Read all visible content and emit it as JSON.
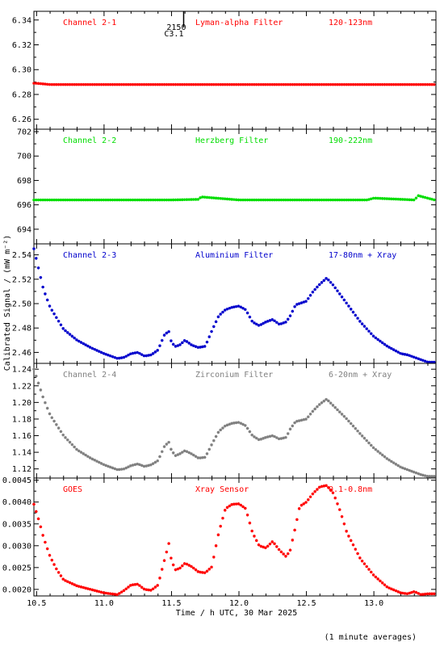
{
  "figure": {
    "xlabel": "Time / h UTC, 30 Mar 2025",
    "ylabel": "Calibrated Signal / (mW m⁻²)",
    "footnote": "(1 minute averages)",
    "marker_label": "2150",
    "marker_sublabel": "C3.1",
    "marker_x": 11.59,
    "xlim": [
      10.48,
      13.46
    ],
    "xticks": [
      10.5,
      11.0,
      11.5,
      12.0,
      12.5,
      13.0
    ],
    "xtick_labels": [
      "10.5",
      "11.0",
      "11.5",
      "12.0",
      "12.5",
      "13.0"
    ]
  },
  "chart_data": [
    {
      "type": "scatter",
      "channel": "Channel 2-1",
      "filter": "Lyman-alpha Filter",
      "band": "120-123nm",
      "color": "#ff0000",
      "ylim": [
        6.252,
        6.347
      ],
      "yticks": [
        6.26,
        6.28,
        6.3,
        6.32,
        6.34
      ],
      "ytick_labels": [
        "6.26",
        "6.28",
        "6.30",
        "6.32",
        "6.34"
      ],
      "x": [
        10.5,
        10.6,
        10.7,
        11.0,
        11.5,
        12.0,
        12.5,
        13.0,
        13.45
      ],
      "y": [
        6.289,
        6.288,
        6.288,
        6.288,
        6.288,
        6.288,
        6.288,
        6.288,
        6.288
      ]
    },
    {
      "type": "scatter",
      "channel": "Channel 2-2",
      "filter": "Herzberg Filter",
      "band": "190-222nm",
      "color": "#00dd00",
      "ylim": [
        692.8,
        702.2
      ],
      "yticks": [
        694,
        696,
        698,
        700,
        702
      ],
      "ytick_labels": [
        "694",
        "696",
        "698",
        "700",
        "702"
      ],
      "x": [
        10.5,
        11.0,
        11.5,
        11.7,
        11.72,
        12.0,
        12.5,
        12.95,
        13.0,
        13.3,
        13.33,
        13.45
      ],
      "y": [
        696.4,
        696.4,
        696.4,
        696.45,
        696.65,
        696.4,
        696.4,
        696.4,
        696.55,
        696.4,
        696.75,
        696.4
      ]
    },
    {
      "type": "scatter",
      "channel": "Channel 2-3",
      "filter": "Aluminium Filter",
      "band": "17-80nm + Xray",
      "color": "#0000cc",
      "ylim": [
        2.451,
        2.549
      ],
      "yticks": [
        2.46,
        2.48,
        2.5,
        2.52,
        2.54
      ],
      "ytick_labels": [
        "2.46",
        "2.48",
        "2.50",
        "2.52",
        "2.54"
      ],
      "x": [
        10.48,
        10.55,
        10.6,
        10.7,
        10.8,
        10.9,
        11.0,
        11.1,
        11.15,
        11.2,
        11.25,
        11.3,
        11.35,
        11.4,
        11.45,
        11.48,
        11.5,
        11.53,
        11.56,
        11.6,
        11.65,
        11.7,
        11.75,
        11.8,
        11.85,
        11.9,
        11.95,
        12.0,
        12.05,
        12.1,
        12.15,
        12.2,
        12.25,
        12.3,
        12.35,
        12.38,
        12.42,
        12.5,
        12.55,
        12.6,
        12.65,
        12.7,
        12.8,
        12.9,
        13.0,
        13.1,
        13.2,
        13.25,
        13.3,
        13.35,
        13.4,
        13.46
      ],
      "y": [
        2.545,
        2.512,
        2.497,
        2.479,
        2.47,
        2.464,
        2.459,
        2.455,
        2.456,
        2.459,
        2.46,
        2.457,
        2.458,
        2.462,
        2.475,
        2.477,
        2.468,
        2.465,
        2.466,
        2.47,
        2.466,
        2.464,
        2.465,
        2.478,
        2.49,
        2.495,
        2.497,
        2.498,
        2.495,
        2.485,
        2.482,
        2.485,
        2.487,
        2.483,
        2.485,
        2.49,
        2.499,
        2.502,
        2.51,
        2.516,
        2.521,
        2.515,
        2.5,
        2.485,
        2.473,
        2.465,
        2.459,
        2.458,
        2.456,
        2.454,
        2.452,
        2.452
      ]
    },
    {
      "type": "scatter",
      "channel": "Channel 2-4",
      "filter": "Zirconium Filter",
      "band": "6-20nm + Xray",
      "color": "#808080",
      "ylim": [
        1.109,
        1.247
      ],
      "yticks": [
        1.12,
        1.14,
        1.16,
        1.18,
        1.2,
        1.22,
        1.24
      ],
      "ytick_labels": [
        "1.12",
        "1.14",
        "1.16",
        "1.18",
        "1.20",
        "1.22",
        "1.24"
      ],
      "x": [
        10.48,
        10.55,
        10.6,
        10.7,
        10.8,
        10.9,
        11.0,
        11.1,
        11.15,
        11.2,
        11.25,
        11.3,
        11.35,
        11.4,
        11.45,
        11.48,
        11.5,
        11.53,
        11.56,
        11.6,
        11.65,
        11.7,
        11.75,
        11.8,
        11.85,
        11.9,
        11.95,
        12.0,
        12.05,
        12.1,
        12.15,
        12.2,
        12.25,
        12.3,
        12.35,
        12.38,
        12.42,
        12.5,
        12.55,
        12.6,
        12.65,
        12.7,
        12.8,
        12.9,
        13.0,
        13.1,
        13.2,
        13.25,
        13.3,
        13.35,
        13.4,
        13.46
      ],
      "y": [
        1.24,
        1.205,
        1.185,
        1.16,
        1.143,
        1.133,
        1.125,
        1.119,
        1.12,
        1.124,
        1.126,
        1.123,
        1.125,
        1.13,
        1.148,
        1.152,
        1.142,
        1.136,
        1.138,
        1.142,
        1.138,
        1.133,
        1.134,
        1.15,
        1.165,
        1.172,
        1.175,
        1.176,
        1.172,
        1.16,
        1.155,
        1.158,
        1.16,
        1.156,
        1.158,
        1.168,
        1.177,
        1.18,
        1.19,
        1.198,
        1.204,
        1.196,
        1.18,
        1.162,
        1.145,
        1.132,
        1.122,
        1.119,
        1.116,
        1.113,
        1.111,
        1.111
      ]
    },
    {
      "type": "scatter",
      "channel": "GOES",
      "filter": "Xray Sensor",
      "band": "0.1-0.8nm",
      "color": "#ff0000",
      "ylim": [
        0.00185,
        0.00455
      ],
      "yticks": [
        0.002,
        0.0025,
        0.003,
        0.0035,
        0.004,
        0.0045
      ],
      "ytick_labels": [
        "0.0020",
        "0.0025",
        "0.0030",
        "0.0035",
        "0.0040",
        "0.0045"
      ],
      "x": [
        10.48,
        10.52,
        10.55,
        10.6,
        10.65,
        10.7,
        10.8,
        10.9,
        11.0,
        11.1,
        11.15,
        11.2,
        11.25,
        11.3,
        11.35,
        11.4,
        11.45,
        11.48,
        11.5,
        11.53,
        11.56,
        11.6,
        11.65,
        11.7,
        11.75,
        11.8,
        11.82,
        11.85,
        11.9,
        11.95,
        12.0,
        12.05,
        12.1,
        12.15,
        12.2,
        12.25,
        12.3,
        12.35,
        12.38,
        12.42,
        12.45,
        12.5,
        12.55,
        12.6,
        12.65,
        12.7,
        12.75,
        12.8,
        12.9,
        13.0,
        13.1,
        13.2,
        13.25,
        13.3,
        13.35,
        13.4,
        13.46
      ],
      "y": [
        0.00395,
        0.00355,
        0.0032,
        0.00275,
        0.00245,
        0.00222,
        0.00208,
        0.002,
        0.00192,
        0.00188,
        0.00198,
        0.0021,
        0.00212,
        0.002,
        0.00198,
        0.0021,
        0.0027,
        0.00305,
        0.00265,
        0.00245,
        0.00248,
        0.0026,
        0.00252,
        0.0024,
        0.00238,
        0.00252,
        0.00285,
        0.0033,
        0.00385,
        0.00395,
        0.00396,
        0.00385,
        0.0033,
        0.003,
        0.00295,
        0.0031,
        0.0029,
        0.00275,
        0.0029,
        0.00345,
        0.0039,
        0.004,
        0.0042,
        0.00435,
        0.00438,
        0.0042,
        0.0038,
        0.0033,
        0.0027,
        0.00232,
        0.00205,
        0.00192,
        0.0019,
        0.00195,
        0.00188,
        0.0019,
        0.0019
      ]
    }
  ]
}
